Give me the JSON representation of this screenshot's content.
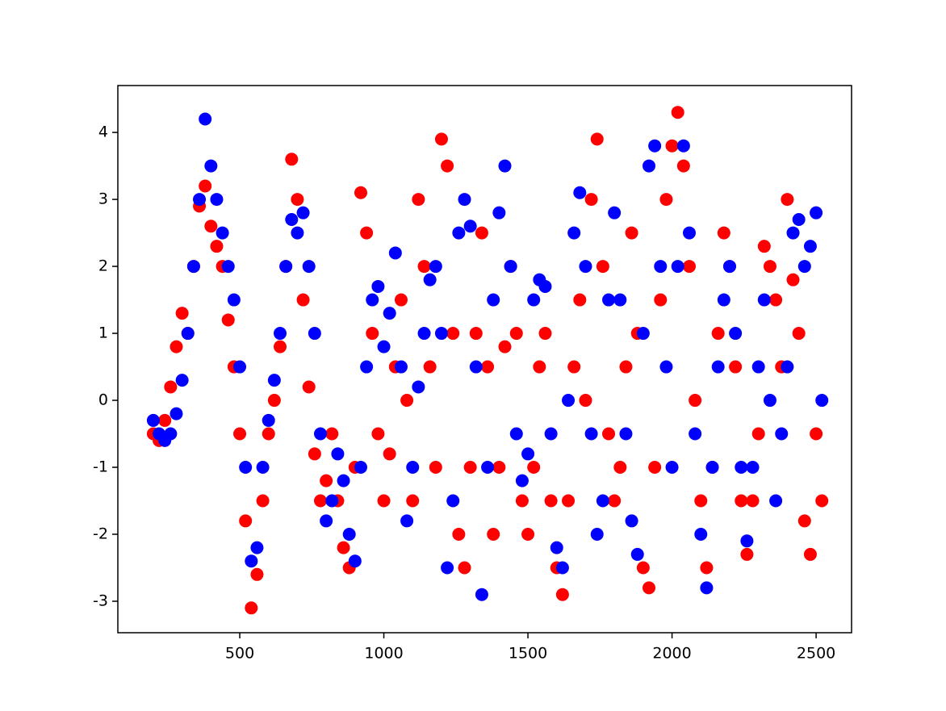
{
  "chart_data": {
    "type": "scatter",
    "xlim": [
      77,
      2623
    ],
    "ylim": [
      -3.47,
      4.7
    ],
    "xticks": [
      500,
      1000,
      1500,
      2000,
      2500
    ],
    "yticks": [
      -3,
      -2,
      -1,
      0,
      1,
      2,
      3,
      4
    ],
    "series": [
      {
        "color": "#ff0000",
        "x": [
          200,
          220,
          240,
          260,
          280,
          300,
          320,
          340,
          360,
          380,
          400,
          420,
          440,
          460,
          480,
          500,
          520,
          540,
          560,
          580,
          600,
          620,
          640,
          660,
          680,
          700,
          720,
          740,
          760,
          780,
          800,
          820,
          840,
          860,
          880,
          900,
          920,
          940,
          960,
          980,
          1000,
          1020,
          1040,
          1060,
          1080,
          1100,
          1120,
          1140,
          1160,
          1180,
          1200,
          1220,
          1240,
          1260,
          1280,
          1300,
          1320,
          1340,
          1360,
          1380,
          1400,
          1420,
          1440,
          1460,
          1480,
          1500,
          1520,
          1540,
          1560,
          1580,
          1600,
          1620,
          1640,
          1660,
          1680,
          1700,
          1720,
          1740,
          1760,
          1780,
          1800,
          1820,
          1840,
          1860,
          1880,
          1900,
          1920,
          1940,
          1960,
          1980,
          2000,
          2020,
          2040,
          2060,
          2080,
          2100,
          2120,
          2140,
          2160,
          2180,
          2200,
          2220,
          2240,
          2260,
          2280,
          2300,
          2320,
          2340,
          2360,
          2380,
          2400,
          2420,
          2440,
          2460,
          2480,
          2500,
          2520
        ],
        "values": [
          -0.5,
          -0.6,
          -0.3,
          0.2,
          0.8,
          1.3,
          1.0,
          2.0,
          2.9,
          3.2,
          2.6,
          2.3,
          2.0,
          1.2,
          0.5,
          -0.5,
          -1.8,
          -3.1,
          -2.6,
          -1.5,
          -0.5,
          0.0,
          0.8,
          2.0,
          3.6,
          3.0,
          1.5,
          0.2,
          -0.8,
          -1.5,
          -1.2,
          -0.5,
          -1.5,
          -2.2,
          -2.5,
          -1.0,
          3.1,
          2.5,
          1.0,
          -0.5,
          -1.5,
          -0.8,
          0.5,
          1.5,
          0.0,
          -1.5,
          3.0,
          2.0,
          0.5,
          -1.0,
          3.9,
          3.5,
          1.0,
          -2.0,
          -2.5,
          -1.0,
          1.0,
          2.5,
          0.5,
          -2.0,
          -1.0,
          0.8,
          2.0,
          1.0,
          -1.5,
          -2.0,
          -1.0,
          0.5,
          1.0,
          -1.5,
          -2.5,
          -2.9,
          -1.5,
          0.5,
          1.5,
          0.0,
          3.0,
          3.9,
          2.0,
          -0.5,
          -1.5,
          -1.0,
          0.5,
          2.5,
          1.0,
          -2.5,
          -2.8,
          -1.0,
          1.5,
          3.0,
          3.8,
          4.3,
          3.5,
          2.0,
          0.0,
          -1.5,
          -2.5,
          -1.0,
          1.0,
          2.5,
          2.0,
          0.5,
          -1.5,
          -2.3,
          -1.5,
          -0.5,
          2.3,
          2.0,
          1.5,
          0.5,
          3.0,
          1.8,
          1.0,
          -1.8,
          -2.3,
          -0.5,
          -1.5
        ]
      },
      {
        "color": "#0000ff",
        "x": [
          200,
          220,
          240,
          260,
          280,
          300,
          320,
          340,
          360,
          380,
          400,
          420,
          440,
          460,
          480,
          500,
          520,
          540,
          560,
          580,
          600,
          620,
          640,
          660,
          680,
          700,
          720,
          740,
          760,
          780,
          800,
          820,
          840,
          860,
          880,
          900,
          920,
          940,
          960,
          980,
          1000,
          1020,
          1040,
          1060,
          1080,
          1100,
          1120,
          1140,
          1160,
          1180,
          1200,
          1220,
          1240,
          1260,
          1280,
          1300,
          1320,
          1340,
          1360,
          1380,
          1400,
          1420,
          1440,
          1460,
          1480,
          1500,
          1520,
          1540,
          1560,
          1580,
          1600,
          1620,
          1640,
          1660,
          1680,
          1700,
          1720,
          1740,
          1760,
          1780,
          1800,
          1820,
          1840,
          1860,
          1880,
          1900,
          1920,
          1940,
          1960,
          1980,
          2000,
          2020,
          2040,
          2060,
          2080,
          2100,
          2120,
          2140,
          2160,
          2180,
          2200,
          2220,
          2240,
          2260,
          2280,
          2300,
          2320,
          2340,
          2360,
          2380,
          2400,
          2420,
          2440,
          2460,
          2480,
          2500,
          2520
        ],
        "values": [
          -0.3,
          -0.5,
          -0.6,
          -0.5,
          -0.2,
          0.3,
          1.0,
          2.0,
          3.0,
          4.2,
          3.5,
          3.0,
          2.5,
          2.0,
          1.5,
          0.5,
          -1.0,
          -2.4,
          -2.2,
          -1.0,
          -0.3,
          0.3,
          1.0,
          2.0,
          2.7,
          2.5,
          2.8,
          2.0,
          1.0,
          -0.5,
          -1.8,
          -1.5,
          -0.8,
          -1.2,
          -2.0,
          -2.4,
          -1.0,
          0.5,
          1.5,
          1.7,
          0.8,
          1.3,
          2.2,
          0.5,
          -1.8,
          -1.0,
          0.2,
          1.0,
          1.8,
          2.0,
          1.0,
          -2.5,
          -1.5,
          2.5,
          3.0,
          2.6,
          0.5,
          -2.9,
          -1.0,
          1.5,
          2.8,
          3.5,
          2.0,
          -0.5,
          -1.2,
          -0.8,
          1.5,
          1.8,
          1.7,
          -0.5,
          -2.2,
          -2.5,
          0.0,
          2.5,
          3.1,
          2.0,
          -0.5,
          -2.0,
          -1.5,
          1.5,
          2.8,
          1.5,
          -0.5,
          -1.8,
          -2.3,
          1.0,
          3.5,
          3.8,
          2.0,
          0.5,
          -1.0,
          2.0,
          3.8,
          2.5,
          -0.5,
          -2.0,
          -2.8,
          -1.0,
          0.5,
          1.5,
          2.0,
          1.0,
          -1.0,
          -2.1,
          -1.0,
          0.5,
          1.5,
          0.0,
          -1.5,
          -0.5,
          0.5,
          2.5,
          2.7,
          2.0,
          2.3,
          2.8,
          0.0
        ]
      }
    ]
  }
}
